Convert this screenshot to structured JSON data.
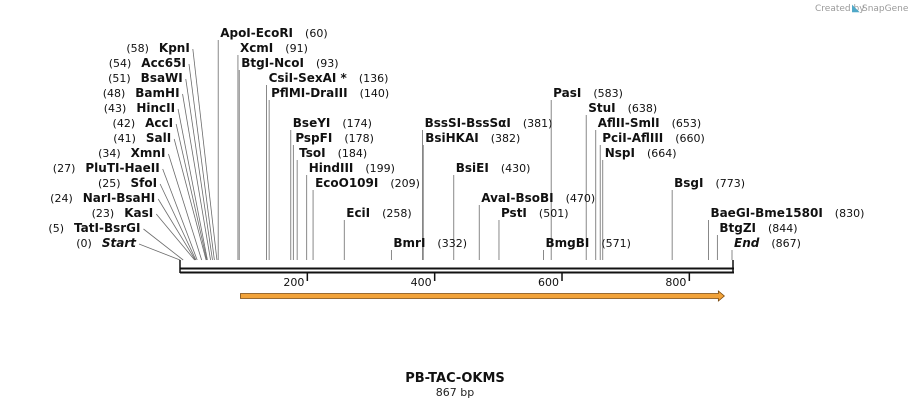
{
  "credit": {
    "label": "Created by",
    "brand": "SnapGene"
  },
  "plasmid": {
    "name": "PB-TAC-OKMS",
    "length_label": "867 bp",
    "length_bp": 867
  },
  "axis": {
    "ticks": [
      200,
      400,
      600,
      800
    ]
  },
  "feature": {
    "start": 95,
    "end": 855,
    "direction": "forward",
    "fill": "#f2a33a",
    "stroke": "#7a4a10"
  },
  "colors": {
    "backbone": "#111111",
    "leader": "#6b6b6b",
    "text": "#111111"
  },
  "sites": [
    {
      "bp": 0,
      "names": [
        "Start"
      ],
      "pos": "(0)",
      "side": "left",
      "row": 0,
      "italic": true
    },
    {
      "bp": 5,
      "names": [
        "TatI",
        "BsrGI"
      ],
      "pos": "(5)",
      "side": "left",
      "row": 1
    },
    {
      "bp": 23,
      "names": [
        "KasI"
      ],
      "pos": "(23)",
      "side": "left",
      "row": 2
    },
    {
      "bp": 24,
      "names": [
        "NarI",
        "BsaHI"
      ],
      "pos": "(24)",
      "side": "left",
      "row": 3
    },
    {
      "bp": 25,
      "names": [
        "SfoI"
      ],
      "pos": "(25)",
      "side": "left",
      "row": 4
    },
    {
      "bp": 27,
      "names": [
        "PluTI",
        "HaeII"
      ],
      "pos": "(27)",
      "side": "left",
      "row": 5
    },
    {
      "bp": 34,
      "names": [
        "XmnI"
      ],
      "pos": "(34)",
      "side": "left",
      "row": 6
    },
    {
      "bp": 41,
      "names": [
        "SalI"
      ],
      "pos": "(41)",
      "side": "left",
      "row": 7
    },
    {
      "bp": 42,
      "names": [
        "AccI"
      ],
      "pos": "(42)",
      "side": "left",
      "row": 8
    },
    {
      "bp": 43,
      "names": [
        "HincII"
      ],
      "pos": "(43)",
      "side": "left",
      "row": 9
    },
    {
      "bp": 48,
      "names": [
        "BamHI"
      ],
      "pos": "(48)",
      "side": "left",
      "row": 10
    },
    {
      "bp": 51,
      "names": [
        "BsaWI"
      ],
      "pos": "(51)",
      "side": "left",
      "row": 11
    },
    {
      "bp": 54,
      "names": [
        "Acc65I"
      ],
      "pos": "(54)",
      "side": "left",
      "row": 12
    },
    {
      "bp": 58,
      "names": [
        "KpnI"
      ],
      "pos": "(58)",
      "side": "left",
      "row": 13
    },
    {
      "bp": 60,
      "names": [
        "ApoI",
        "EcoRI"
      ],
      "pos": "(60)",
      "side": "right",
      "row": 14
    },
    {
      "bp": 91,
      "names": [
        "XcmI"
      ],
      "pos": "(91)",
      "side": "right",
      "row": 13
    },
    {
      "bp": 93,
      "names": [
        "BtgI",
        "NcoI"
      ],
      "pos": "(93)",
      "side": "right",
      "row": 12
    },
    {
      "bp": 136,
      "names": [
        "CsiI",
        "SexAI *"
      ],
      "pos": "(136)",
      "side": "right",
      "row": 11
    },
    {
      "bp": 140,
      "names": [
        "PflMI",
        "DraIII"
      ],
      "pos": "(140)",
      "side": "right",
      "row": 10
    },
    {
      "bp": 174,
      "names": [
        "BseYI"
      ],
      "pos": "(174)",
      "side": "right",
      "row": 8
    },
    {
      "bp": 178,
      "names": [
        "PspFI"
      ],
      "pos": "(178)",
      "side": "right",
      "row": 7
    },
    {
      "bp": 184,
      "names": [
        "TsoI"
      ],
      "pos": "(184)",
      "side": "right",
      "row": 6
    },
    {
      "bp": 199,
      "names": [
        "HindIII"
      ],
      "pos": "(199)",
      "side": "right",
      "row": 5
    },
    {
      "bp": 209,
      "names": [
        "EcoO109I"
      ],
      "pos": "(209)",
      "side": "right",
      "row": 4
    },
    {
      "bp": 258,
      "names": [
        "EciI"
      ],
      "pos": "(258)",
      "side": "right",
      "row": 2
    },
    {
      "bp": 332,
      "names": [
        "BmrI"
      ],
      "pos": "(332)",
      "side": "right",
      "row": 0
    },
    {
      "bp": 381,
      "names": [
        "BssSI",
        "BssSαI"
      ],
      "pos": "(381)",
      "side": "right",
      "row": 8
    },
    {
      "bp": 382,
      "names": [
        "BsiHKAI"
      ],
      "pos": "(382)",
      "side": "right",
      "row": 7
    },
    {
      "bp": 430,
      "names": [
        "BsiEI"
      ],
      "pos": "(430)",
      "side": "right",
      "row": 5
    },
    {
      "bp": 470,
      "names": [
        "AvaI",
        "BsoBI"
      ],
      "pos": "(470)",
      "side": "right",
      "row": 3
    },
    {
      "bp": 501,
      "names": [
        "PstI"
      ],
      "pos": "(501)",
      "side": "right",
      "row": 2
    },
    {
      "bp": 571,
      "names": [
        "BmgBI"
      ],
      "pos": "(571)",
      "side": "right",
      "row": 0
    },
    {
      "bp": 583,
      "names": [
        "PasI"
      ],
      "pos": "(583)",
      "side": "right",
      "row": 10
    },
    {
      "bp": 638,
      "names": [
        "StuI"
      ],
      "pos": "(638)",
      "side": "right",
      "row": 9
    },
    {
      "bp": 653,
      "names": [
        "AflII",
        "SmlI"
      ],
      "pos": "(653)",
      "side": "right",
      "row": 8
    },
    {
      "bp": 660,
      "names": [
        "PciI",
        "AflIII"
      ],
      "pos": "(660)",
      "side": "right",
      "row": 7
    },
    {
      "bp": 664,
      "names": [
        "NspI"
      ],
      "pos": "(664)",
      "side": "right",
      "row": 6
    },
    {
      "bp": 773,
      "names": [
        "BsgI"
      ],
      "pos": "(773)",
      "side": "right",
      "row": 4
    },
    {
      "bp": 830,
      "names": [
        "BaeGI",
        "Bme1580I"
      ],
      "pos": "(830)",
      "side": "right",
      "row": 2
    },
    {
      "bp": 844,
      "names": [
        "BtgZI"
      ],
      "pos": "(844)",
      "side": "right",
      "row": 1
    },
    {
      "bp": 867,
      "names": [
        "End"
      ],
      "pos": "(867)",
      "side": "right",
      "row": 0,
      "italic": true
    }
  ]
}
